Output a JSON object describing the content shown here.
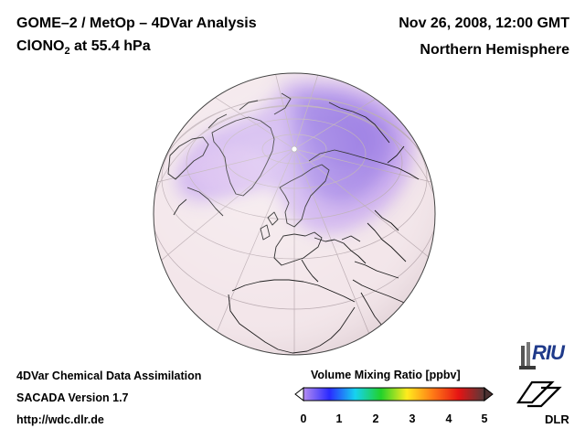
{
  "header": {
    "title": "GOME–2 / MetOp – 4DVar Analysis",
    "species_main": "ClONO",
    "species_sub": "2",
    "species_rest": " at 55.4 hPa",
    "datetime": "Nov 26, 2008, 12:00 GMT",
    "region": "Northern Hemisphere"
  },
  "footer": {
    "line1": "4DVar Chemical Data Assimilation",
    "line2": "SACADA Version 1.7",
    "line3": "http://wdc.dlr.de"
  },
  "colorbar": {
    "label": "Volume Mixing Ratio [ppbv]",
    "ticks": [
      "0",
      "1",
      "2",
      "3",
      "4",
      "5"
    ],
    "colors": [
      "#b48cf0",
      "#2a2aff",
      "#16d2f0",
      "#22d22a",
      "#ffeb1e",
      "#ff7a16",
      "#e61414",
      "#553a3a"
    ]
  },
  "map": {
    "background_color": "#f3e6ea",
    "high_color": "#a07ae8"
  },
  "logos": {
    "riu_text": "RIU",
    "dlr_text": "DLR"
  }
}
